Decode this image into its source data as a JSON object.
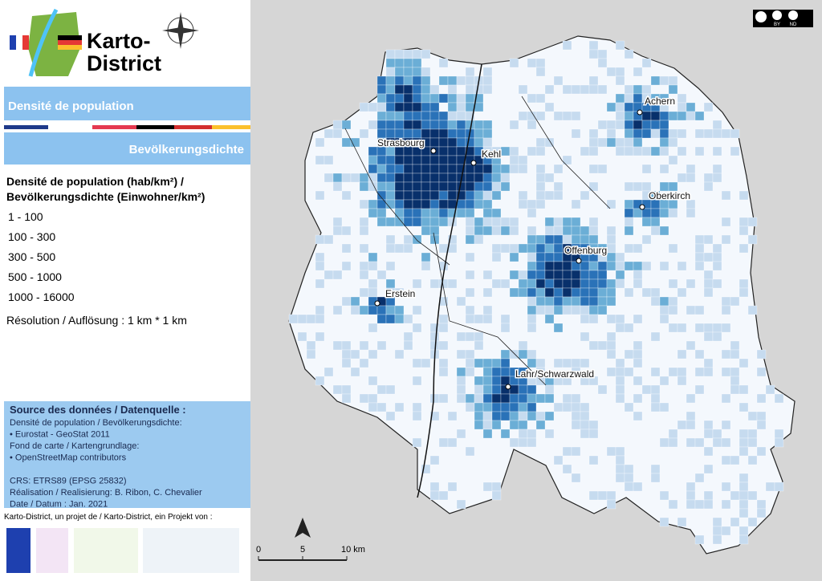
{
  "header": {
    "brand": [
      "Karto-",
      "District"
    ],
    "title_fr": "Densité de population",
    "title_de": "Bevölkerungsdichte"
  },
  "legend": {
    "title": [
      "Densité de population (hab/km²) /",
      "Bevölkerungsdichte (Einwohner/km²)"
    ],
    "items": [
      {
        "label": "1 - 100",
        "color": "#f4f8fd"
      },
      {
        "label": "100 - 300",
        "color": "#c6dbef"
      },
      {
        "label": "300 - 500",
        "color": "#6baed6"
      },
      {
        "label": "500 - 1000",
        "color": "#2a72b8"
      },
      {
        "label": "1000 - 16000",
        "color": "#08306b"
      }
    ],
    "resolution": "Résolution / Auflösung : 1 km * 1 km"
  },
  "source": {
    "heading": "Source des données / Datenquelle :",
    "lines": [
      "Densité de population / Bevölkerungsdichte:",
      "•  Eurostat - GeoStat 2011",
      "Fond de carte / Kartengrundlage:",
      "•  OpenStreetMap contributors",
      "",
      "CRS: ETRS89 (EPSG 25832)",
      "Réalisation / Realisierung: B. Ribon, C. Chevalier",
      "Date / Datum : Jan. 2021"
    ]
  },
  "footer": "Karto-District, un projet de / Karto-District, ein Projekt von :",
  "map": {
    "cities": [
      "Strasbourg",
      "Kehl",
      "Achern",
      "Oberkirch",
      "Offenburg",
      "Erstein",
      "Lahr/Schwarzwald"
    ],
    "scale": [
      "0",
      "5",
      "10 km"
    ],
    "license": [
      "BY",
      "ND"
    ]
  }
}
